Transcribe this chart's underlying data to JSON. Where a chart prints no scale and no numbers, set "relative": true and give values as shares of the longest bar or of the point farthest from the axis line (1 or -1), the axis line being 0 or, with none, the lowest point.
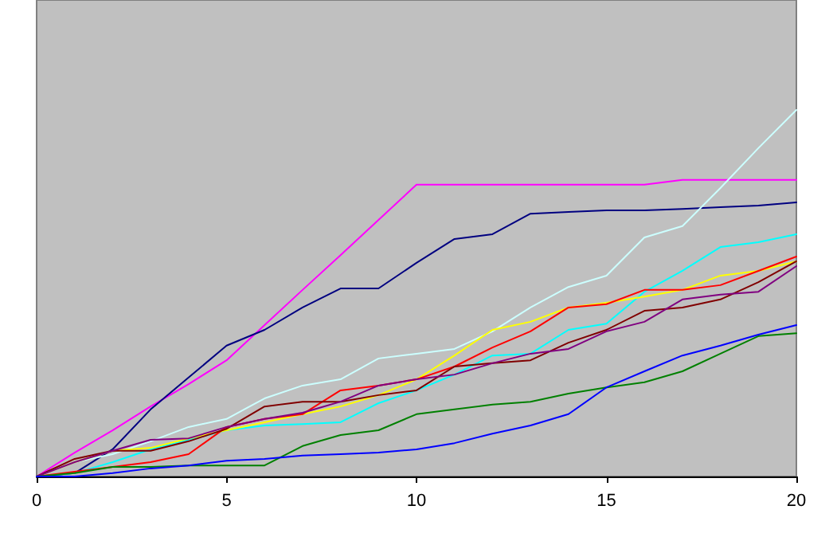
{
  "chart_data": {
    "type": "line",
    "relative": true,
    "x": [
      0,
      1,
      2,
      3,
      4,
      5,
      6,
      7,
      8,
      9,
      10,
      11,
      12,
      13,
      14,
      15,
      16,
      17,
      18,
      19,
      20
    ],
    "xlim": [
      0,
      20
    ],
    "xticks": [
      0,
      5,
      10,
      15,
      20
    ],
    "tick_labels": "x",
    "marker": "none",
    "line_style": "solid",
    "series": [
      {
        "color": "#ff00ff",
        "values": [
          0,
          0.065,
          0.126,
          0.191,
          0.252,
          0.317,
          0.413,
          0.509,
          0.604,
          0.7,
          0.796,
          0.796,
          0.796,
          0.796,
          0.796,
          0.796,
          0.796,
          0.809,
          0.809,
          0.809,
          0.809
        ]
      },
      {
        "color": "#000080",
        "values": [
          0,
          0.009,
          0.074,
          0.183,
          0.27,
          0.357,
          0.4,
          0.461,
          0.513,
          0.513,
          0.583,
          0.648,
          0.661,
          0.717,
          0.722,
          0.726,
          0.726,
          0.73,
          0.735,
          0.739,
          0.748
        ]
      },
      {
        "color": "#ccffff",
        "values": [
          0,
          0.039,
          0.061,
          0.096,
          0.135,
          0.157,
          0.213,
          0.248,
          0.265,
          0.322,
          0.335,
          0.348,
          0.396,
          0.461,
          0.517,
          0.548,
          0.652,
          0.683,
          0.787,
          0.896,
          1
        ]
      },
      {
        "color": "#00ffff",
        "values": [
          0,
          0.009,
          0.039,
          0.074,
          0.1,
          0.126,
          0.139,
          0.143,
          0.148,
          0.2,
          0.235,
          0.278,
          0.33,
          0.335,
          0.4,
          0.417,
          0.504,
          0.561,
          0.626,
          0.639,
          0.661
        ]
      },
      {
        "color": "#ffff00",
        "values": [
          0,
          0.039,
          0.07,
          0.078,
          0.104,
          0.126,
          0.148,
          0.17,
          0.191,
          0.222,
          0.265,
          0.33,
          0.4,
          0.422,
          0.461,
          0.474,
          0.491,
          0.509,
          0.548,
          0.561,
          0.587
        ]
      },
      {
        "color": "#ff0000",
        "values": [
          0,
          0.013,
          0.026,
          0.039,
          0.061,
          0.135,
          0.157,
          0.17,
          0.235,
          0.248,
          0.265,
          0.3,
          0.352,
          0.396,
          0.461,
          0.47,
          0.509,
          0.509,
          0.522,
          0.561,
          0.6
        ]
      },
      {
        "color": "#800000",
        "values": [
          0,
          0.048,
          0.07,
          0.07,
          0.096,
          0.13,
          0.191,
          0.204,
          0.204,
          0.222,
          0.235,
          0.3,
          0.309,
          0.317,
          0.365,
          0.4,
          0.452,
          0.461,
          0.483,
          0.53,
          0.587
        ]
      },
      {
        "color": "#800080",
        "values": [
          0,
          0.039,
          0.07,
          0.1,
          0.104,
          0.135,
          0.157,
          0.174,
          0.204,
          0.248,
          0.265,
          0.278,
          0.309,
          0.335,
          0.348,
          0.396,
          0.422,
          0.483,
          0.496,
          0.504,
          0.574
        ]
      },
      {
        "color": "#008000",
        "values": [
          0,
          0.009,
          0.026,
          0.026,
          0.03,
          0.03,
          0.03,
          0.083,
          0.113,
          0.126,
          0.17,
          0.183,
          0.196,
          0.204,
          0.226,
          0.243,
          0.257,
          0.287,
          0.335,
          0.383,
          0.391
        ]
      },
      {
        "color": "#0000ff",
        "values": [
          0,
          0,
          0.009,
          0.022,
          0.03,
          0.043,
          0.048,
          0.057,
          0.061,
          0.065,
          0.074,
          0.091,
          0.117,
          0.139,
          0.17,
          0.243,
          0.287,
          0.33,
          0.357,
          0.387,
          0.413
        ]
      }
    ]
  }
}
